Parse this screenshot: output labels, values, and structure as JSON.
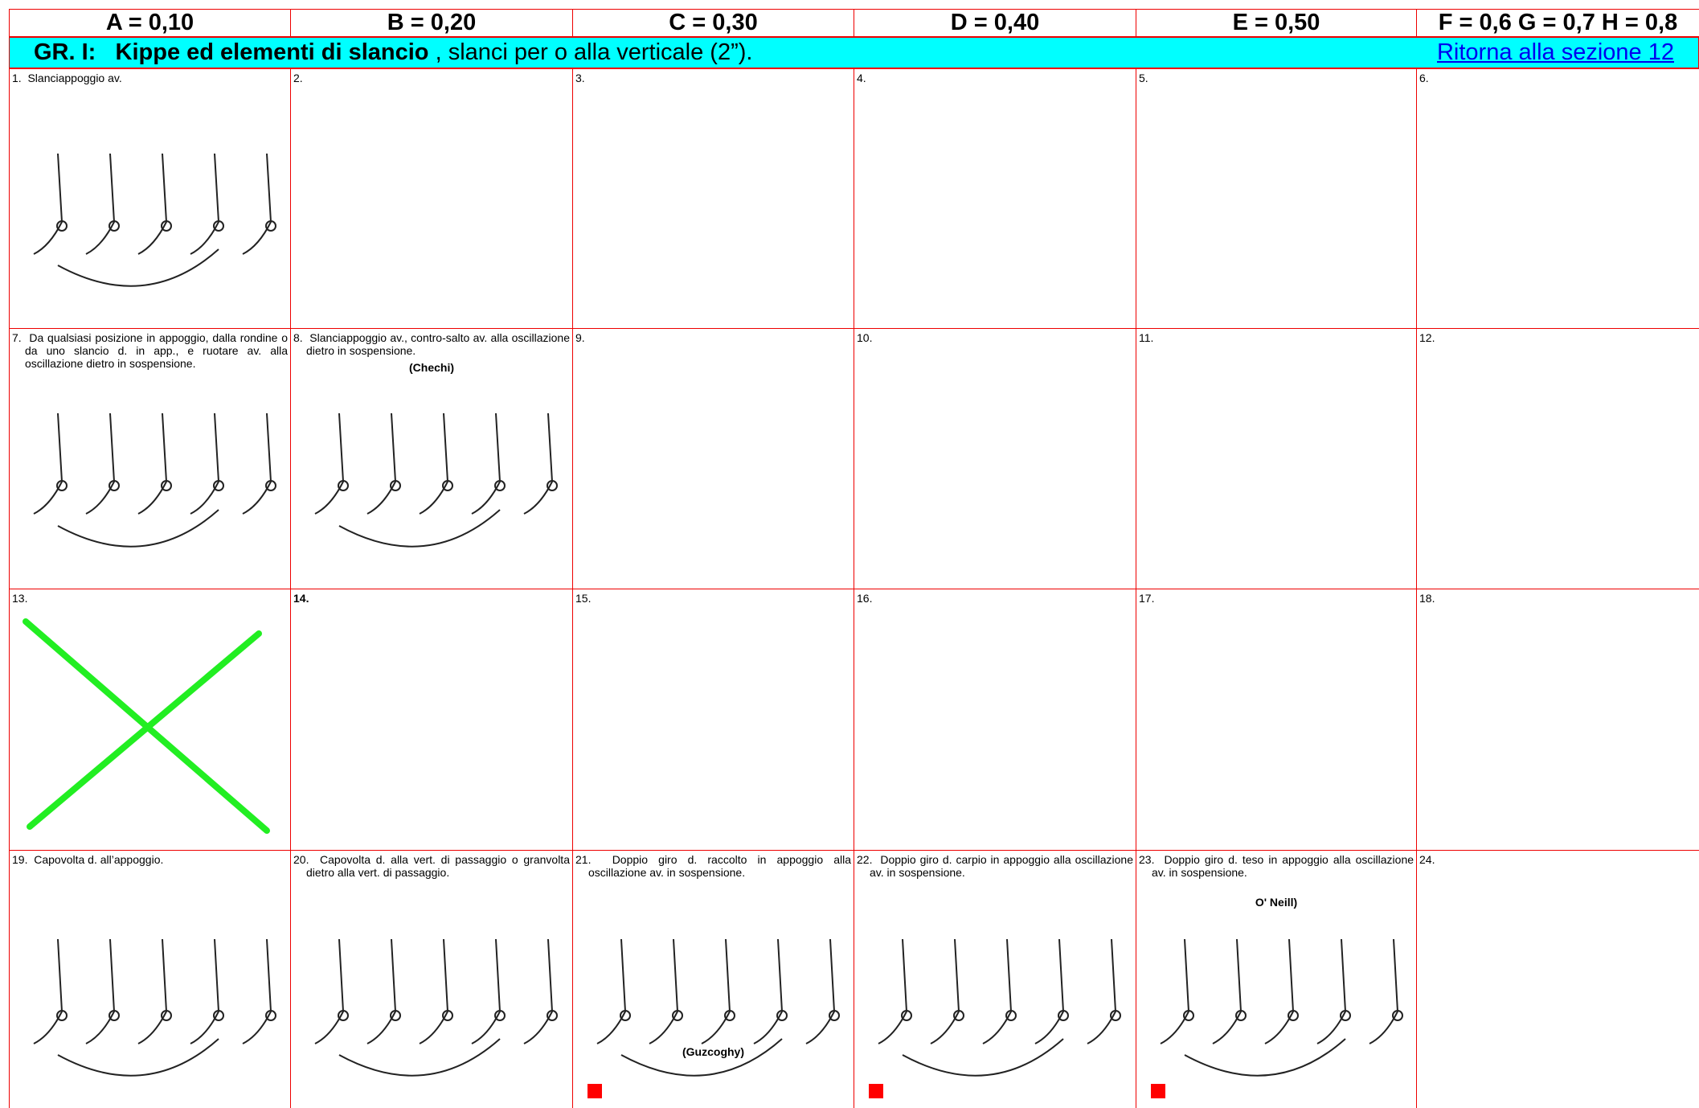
{
  "header": {
    "columns": [
      "A = 0,10",
      "B = 0,20",
      "C = 0,30",
      "D = 0,40",
      "E = 0,50",
      "F = 0,6 G = 0,7 H = 0,8"
    ]
  },
  "section": {
    "group": "GR. I:",
    "title": "Kippe ed elementi di slancio",
    "subtitle": ", slanci per o alla verticale (2”).",
    "link": "Ritorna alla sezione 12"
  },
  "cells": [
    {
      "number": "1.",
      "text": "Slanciappoggio av."
    },
    {
      "number": "2."
    },
    {
      "number": "3."
    },
    {
      "number": "4."
    },
    {
      "number": "5."
    },
    {
      "number": "6."
    },
    {
      "number": "7.",
      "text": "Da qualsiasi posizione in appoggio, dalla rondine o da uno slancio d. in app., e ruotare av. alla oscillazione dietro in sospensione."
    },
    {
      "number": "8.",
      "text": "Slanciappoggio av., contro-salto av. alla oscillazione dietro in sospensione.",
      "name": "(Chechi)"
    },
    {
      "number": "9."
    },
    {
      "number": "10."
    },
    {
      "number": "11."
    },
    {
      "number": "12."
    },
    {
      "number": "13."
    },
    {
      "number": "14."
    },
    {
      "number": "15."
    },
    {
      "number": "16."
    },
    {
      "number": "17."
    },
    {
      "number": "18."
    },
    {
      "number": "19.",
      "text": "Capovolta d. all’appoggio."
    },
    {
      "number": "20.",
      "text": "Capovolta d. alla vert. di passaggio o granvolta dietro alla vert. di passaggio."
    },
    {
      "number": "21.",
      "text": "Doppio giro d. raccolto in appoggio alla oscillazione av. in sospensione.",
      "name": "(Guzcoghy)"
    },
    {
      "number": "22.",
      "text": "Doppio giro d. carpio in appoggio alla oscillazione av. in sospensione."
    },
    {
      "number": "23.",
      "text": "Doppio giro d. teso in appoggio alla oscillazione av. in sospensione.",
      "name": "O' Neill)"
    },
    {
      "number": "24."
    }
  ]
}
